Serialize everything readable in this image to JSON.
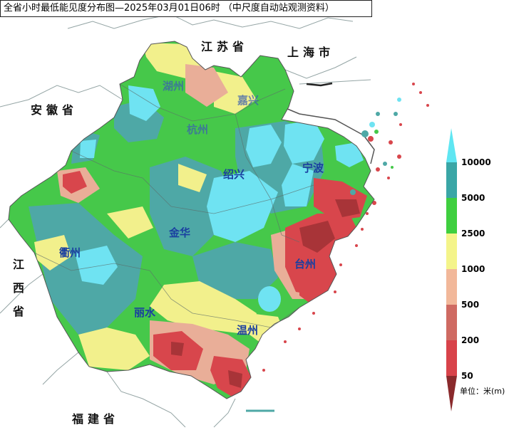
{
  "title": "全省小时最低能见度分布图—2025年03月01日06时    （中尺度自动站观测资料）",
  "labels": {
    "jiangsu": "江苏省",
    "shanghai": "上海市",
    "anhui": "安徽省",
    "jiangxi": "江西省",
    "fujian": "福建省"
  },
  "cities": {
    "huzhou": "湖州",
    "jiaxing": "嘉兴",
    "hangzhou": "杭州",
    "shaoxing": "绍兴",
    "ningbo": "宁波",
    "jinhua": "金华",
    "quzhou": "衢州",
    "taizhou": "台州",
    "lishui": "丽水",
    "wenzhou": "温州"
  },
  "legend": {
    "unit": "单位：米(m)",
    "levels": [
      "10000",
      "5000",
      "2500",
      "1000",
      "500",
      "200",
      "50"
    ],
    "colors": [
      "#5fe6f2",
      "#3aa6a6",
      "#3fcf3f",
      "#f4f48a",
      "#f2b89a",
      "#cf6a62",
      "#d8434a",
      "#8a2a2c"
    ]
  },
  "colors": {
    "cyan": "#6fe3f2",
    "teal": "#4ea8a6",
    "green": "#46c84a",
    "yellow": "#f2f08c",
    "pink": "#e9ae98",
    "red": "#d8464c",
    "darkred": "#a83438"
  }
}
